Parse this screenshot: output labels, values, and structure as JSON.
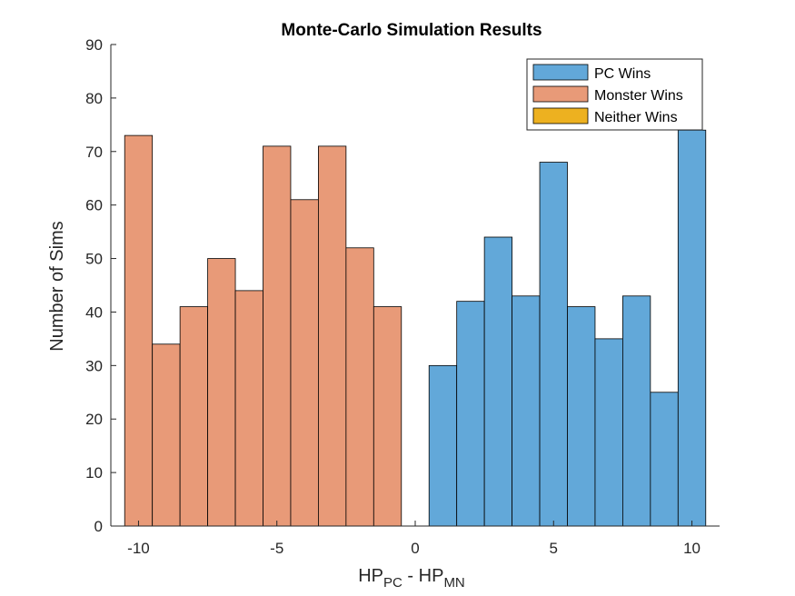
{
  "chart_data": {
    "type": "bar",
    "title": "Monte-Carlo Simulation Results",
    "xlabel": {
      "base1": "HP",
      "sub1": "PC",
      "mid": " - HP",
      "sub2": "MN"
    },
    "ylabel": "Number of Sims",
    "xlim": [
      -11,
      11
    ],
    "ylim": [
      0,
      90
    ],
    "x_ticks": [
      -10,
      -5,
      0,
      5,
      10
    ],
    "y_ticks": [
      0,
      10,
      20,
      30,
      40,
      50,
      60,
      70,
      80,
      90
    ],
    "bin_width": 1,
    "grid": false,
    "legend_position": "top-right",
    "series": [
      {
        "name": "PC Wins",
        "color": "#62A8D9",
        "bins": [
          1,
          2,
          3,
          4,
          5,
          6,
          7,
          8,
          9,
          10
        ],
        "values": [
          30,
          42,
          54,
          43,
          68,
          41,
          35,
          43,
          25,
          74
        ]
      },
      {
        "name": "Monster Wins",
        "color": "#E89A78",
        "bins": [
          -10,
          -9,
          -8,
          -7,
          -6,
          -5,
          -4,
          -3,
          -2,
          -1
        ],
        "values": [
          73,
          34,
          41,
          50,
          44,
          71,
          61,
          71,
          52,
          41
        ]
      },
      {
        "name": "Neither Wins",
        "color": "#EDB120",
        "bins": [],
        "values": []
      }
    ]
  }
}
